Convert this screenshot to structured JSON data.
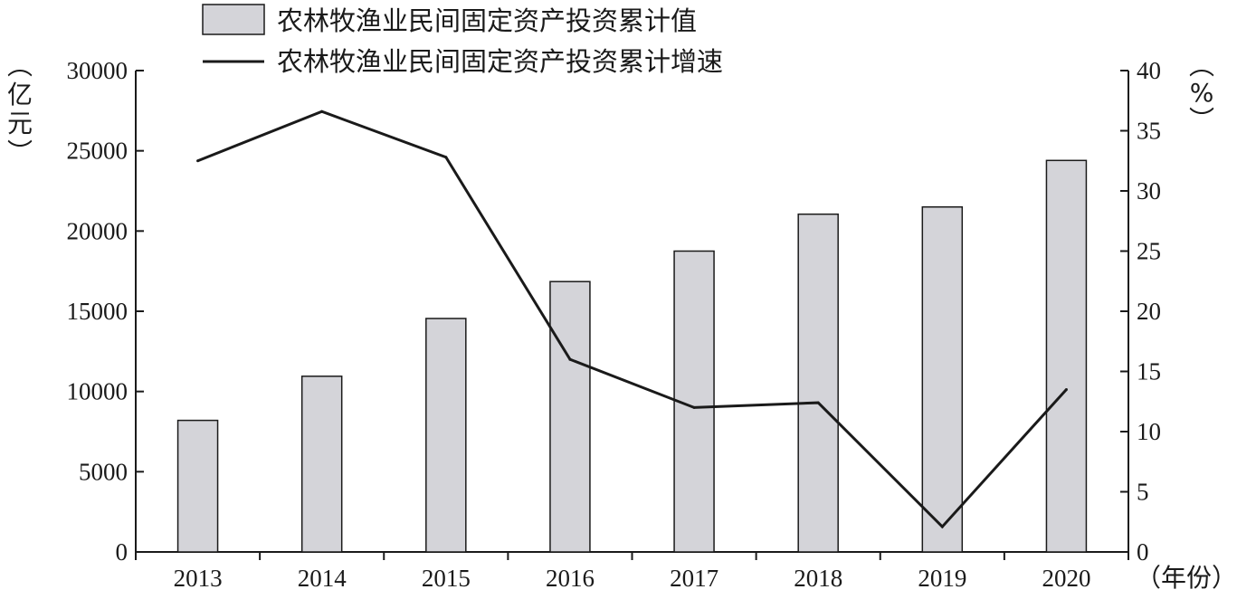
{
  "chart_data": {
    "type": "bar",
    "categories": [
      "2013",
      "2014",
      "2015",
      "2016",
      "2017",
      "2018",
      "2019",
      "2020"
    ],
    "series": [
      {
        "name": "农林牧渔业民间固定资产投资累计值",
        "type": "bar",
        "axis": "left",
        "values": [
          8200,
          10950,
          14550,
          16850,
          18750,
          21050,
          21500,
          24400
        ],
        "color": "#d4d4d9"
      },
      {
        "name": "农林牧渔业民间固定资产投资累计增速",
        "type": "line",
        "axis": "right",
        "values": [
          32.5,
          36.6,
          32.8,
          16.0,
          12.0,
          12.4,
          2.1,
          13.5
        ],
        "color": "#1a1a1a"
      }
    ],
    "y_left": {
      "label": "（亿元）",
      "lim": [
        0,
        30000
      ],
      "ticks": [
        "0",
        "5000",
        "10000",
        "15000",
        "20000",
        "25000",
        "30000"
      ]
    },
    "y_right": {
      "label": "（%）",
      "lim": [
        0,
        40
      ],
      "ticks": [
        "0",
        "5",
        "10",
        "15",
        "20",
        "25",
        "30",
        "35",
        "40"
      ]
    },
    "x_label": "（年份）",
    "legend_position": "top-center",
    "grid": false
  }
}
